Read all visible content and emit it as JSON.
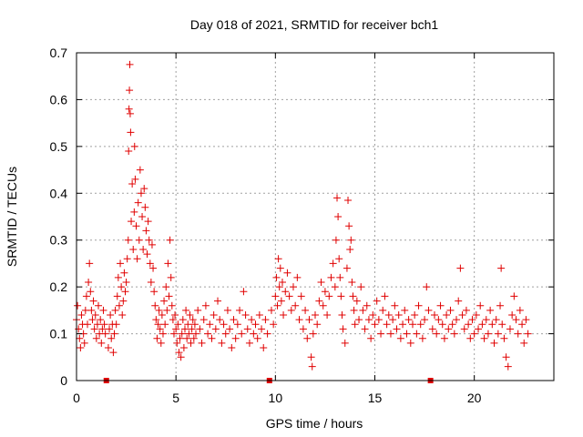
{
  "chart_data": {
    "type": "scatter",
    "title": "Day 018 of 2021, SRMTID for receiver bch1",
    "xlabel": "GPS time / hours",
    "ylabel": "SRMTID / TECUs",
    "xlim": [
      0,
      24
    ],
    "ylim": [
      0,
      0.7
    ],
    "xticks": [
      0,
      5,
      10,
      15,
      20
    ],
    "xtick_labels": [
      "0",
      "5",
      "10",
      "15",
      "20"
    ],
    "yticks": [
      0,
      0.1,
      0.2,
      0.3,
      0.4,
      0.5,
      0.6,
      0.7
    ],
    "ytick_labels": [
      "0",
      "0.1",
      "0.2",
      "0.3",
      "0.4",
      "0.5",
      "0.6",
      "0.7"
    ],
    "grid": true,
    "marker": "+",
    "color": "#e00000",
    "data_gaps_x": [
      1.5,
      9.7,
      17.8
    ],
    "series": [
      {
        "name": "SRMTID",
        "points": [
          [
            0.0,
            0.13
          ],
          [
            0.05,
            0.16
          ],
          [
            0.1,
            0.11
          ],
          [
            0.15,
            0.09
          ],
          [
            0.2,
            0.07
          ],
          [
            0.25,
            0.14
          ],
          [
            0.3,
            0.12
          ],
          [
            0.35,
            0.1
          ],
          [
            0.4,
            0.08
          ],
          [
            0.45,
            0.15
          ],
          [
            0.5,
            0.18
          ],
          [
            0.55,
            0.12
          ],
          [
            0.6,
            0.21
          ],
          [
            0.65,
            0.25
          ],
          [
            0.7,
            0.19
          ],
          [
            0.75,
            0.15
          ],
          [
            0.8,
            0.13
          ],
          [
            0.85,
            0.17
          ],
          [
            0.9,
            0.11
          ],
          [
            0.95,
            0.14
          ],
          [
            1.0,
            0.09
          ],
          [
            1.05,
            0.12
          ],
          [
            1.1,
            0.16
          ],
          [
            1.15,
            0.1
          ],
          [
            1.2,
            0.13
          ],
          [
            1.25,
            0.08
          ],
          [
            1.3,
            0.11
          ],
          [
            1.35,
            0.15
          ],
          [
            1.4,
            0.12
          ],
          [
            1.45,
            0.1
          ],
          [
            1.6,
            0.07
          ],
          [
            1.65,
            0.11
          ],
          [
            1.7,
            0.14
          ],
          [
            1.75,
            0.09
          ],
          [
            1.8,
            0.12
          ],
          [
            1.85,
            0.06
          ],
          [
            1.9,
            0.1
          ],
          [
            1.95,
            0.15
          ],
          [
            2.0,
            0.12
          ],
          [
            2.05,
            0.18
          ],
          [
            2.1,
            0.22
          ],
          [
            2.15,
            0.16
          ],
          [
            2.2,
            0.25
          ],
          [
            2.25,
            0.2
          ],
          [
            2.3,
            0.14
          ],
          [
            2.35,
            0.17
          ],
          [
            2.4,
            0.23
          ],
          [
            2.45,
            0.19
          ],
          [
            2.5,
            0.21
          ],
          [
            2.55,
            0.26
          ],
          [
            2.6,
            0.3
          ],
          [
            2.62,
            0.49
          ],
          [
            2.64,
            0.58
          ],
          [
            2.66,
            0.62
          ],
          [
            2.68,
            0.675
          ],
          [
            2.7,
            0.57
          ],
          [
            2.72,
            0.53
          ],
          [
            2.75,
            0.34
          ],
          [
            2.8,
            0.42
          ],
          [
            2.85,
            0.28
          ],
          [
            2.9,
            0.36
          ],
          [
            2.92,
            0.5
          ],
          [
            2.95,
            0.43
          ],
          [
            3.0,
            0.33
          ],
          [
            3.05,
            0.26
          ],
          [
            3.1,
            0.38
          ],
          [
            3.15,
            0.3
          ],
          [
            3.2,
            0.45
          ],
          [
            3.25,
            0.4
          ],
          [
            3.3,
            0.35
          ],
          [
            3.35,
            0.28
          ],
          [
            3.4,
            0.41
          ],
          [
            3.45,
            0.37
          ],
          [
            3.5,
            0.32
          ],
          [
            3.55,
            0.27
          ],
          [
            3.6,
            0.34
          ],
          [
            3.65,
            0.3
          ],
          [
            3.7,
            0.25
          ],
          [
            3.75,
            0.21
          ],
          [
            3.8,
            0.29
          ],
          [
            3.85,
            0.24
          ],
          [
            3.9,
            0.19
          ],
          [
            3.95,
            0.16
          ],
          [
            4.0,
            0.13
          ],
          [
            4.05,
            0.09
          ],
          [
            4.1,
            0.12
          ],
          [
            4.15,
            0.15
          ],
          [
            4.2,
            0.11
          ],
          [
            4.25,
            0.08
          ],
          [
            4.3,
            0.14
          ],
          [
            4.35,
            0.1
          ],
          [
            4.4,
            0.17
          ],
          [
            4.45,
            0.12
          ],
          [
            4.5,
            0.2
          ],
          [
            4.55,
            0.15
          ],
          [
            4.6,
            0.25
          ],
          [
            4.65,
            0.18
          ],
          [
            4.7,
            0.3
          ],
          [
            4.75,
            0.22
          ],
          [
            4.8,
            0.16
          ],
          [
            4.85,
            0.13
          ],
          [
            4.9,
            0.1
          ],
          [
            4.95,
            0.14
          ],
          [
            5.0,
            0.11
          ],
          [
            5.05,
            0.08
          ],
          [
            5.1,
            0.12
          ],
          [
            5.15,
            0.06
          ],
          [
            5.2,
            0.09
          ],
          [
            5.25,
            0.05
          ],
          [
            5.3,
            0.1
          ],
          [
            5.35,
            0.13
          ],
          [
            5.4,
            0.07
          ],
          [
            5.45,
            0.11
          ],
          [
            5.5,
            0.15
          ],
          [
            5.55,
            0.09
          ],
          [
            5.6,
            0.12
          ],
          [
            5.65,
            0.1
          ],
          [
            5.7,
            0.14
          ],
          [
            5.75,
            0.08
          ],
          [
            5.8,
            0.11
          ],
          [
            5.85,
            0.13
          ],
          [
            5.9,
            0.09
          ],
          [
            5.95,
            0.12
          ],
          [
            6.0,
            0.1
          ],
          [
            6.1,
            0.15
          ],
          [
            6.2,
            0.11
          ],
          [
            6.3,
            0.08
          ],
          [
            6.4,
            0.13
          ],
          [
            6.5,
            0.16
          ],
          [
            6.6,
            0.1
          ],
          [
            6.7,
            0.12
          ],
          [
            6.8,
            0.09
          ],
          [
            6.9,
            0.14
          ],
          [
            7.0,
            0.11
          ],
          [
            7.1,
            0.17
          ],
          [
            7.2,
            0.13
          ],
          [
            7.3,
            0.08
          ],
          [
            7.4,
            0.12
          ],
          [
            7.5,
            0.1
          ],
          [
            7.6,
            0.15
          ],
          [
            7.7,
            0.11
          ],
          [
            7.8,
            0.07
          ],
          [
            7.9,
            0.13
          ],
          [
            8.0,
            0.09
          ],
          [
            8.1,
            0.12
          ],
          [
            8.2,
            0.15
          ],
          [
            8.3,
            0.1
          ],
          [
            8.4,
            0.19
          ],
          [
            8.5,
            0.14
          ],
          [
            8.6,
            0.11
          ],
          [
            8.7,
            0.08
          ],
          [
            8.8,
            0.13
          ],
          [
            8.9,
            0.1
          ],
          [
            9.0,
            0.12
          ],
          [
            9.1,
            0.09
          ],
          [
            9.2,
            0.14
          ],
          [
            9.3,
            0.11
          ],
          [
            9.4,
            0.07
          ],
          [
            9.5,
            0.13
          ],
          [
            9.6,
            0.1
          ],
          [
            9.8,
            0.15
          ],
          [
            9.9,
            0.12
          ],
          [
            10.0,
            0.18
          ],
          [
            10.05,
            0.22
          ],
          [
            10.1,
            0.16
          ],
          [
            10.15,
            0.26
          ],
          [
            10.2,
            0.2
          ],
          [
            10.25,
            0.24
          ],
          [
            10.3,
            0.17
          ],
          [
            10.35,
            0.21
          ],
          [
            10.4,
            0.14
          ],
          [
            10.5,
            0.19
          ],
          [
            10.6,
            0.23
          ],
          [
            10.7,
            0.18
          ],
          [
            10.8,
            0.15
          ],
          [
            10.9,
            0.2
          ],
          [
            11.0,
            0.16
          ],
          [
            11.1,
            0.22
          ],
          [
            11.2,
            0.13
          ],
          [
            11.3,
            0.18
          ],
          [
            11.4,
            0.11
          ],
          [
            11.5,
            0.15
          ],
          [
            11.6,
            0.09
          ],
          [
            11.7,
            0.13
          ],
          [
            11.8,
            0.05
          ],
          [
            11.85,
            0.03
          ],
          [
            11.9,
            0.1
          ],
          [
            12.0,
            0.14
          ],
          [
            12.1,
            0.12
          ],
          [
            12.2,
            0.17
          ],
          [
            12.3,
            0.21
          ],
          [
            12.4,
            0.16
          ],
          [
            12.5,
            0.19
          ],
          [
            12.6,
            0.14
          ],
          [
            12.7,
            0.18
          ],
          [
            12.8,
            0.22
          ],
          [
            12.9,
            0.25
          ],
          [
            13.0,
            0.2
          ],
          [
            13.05,
            0.3
          ],
          [
            13.1,
            0.39
          ],
          [
            13.15,
            0.35
          ],
          [
            13.2,
            0.26
          ],
          [
            13.25,
            0.22
          ],
          [
            13.3,
            0.18
          ],
          [
            13.35,
            0.14
          ],
          [
            13.4,
            0.11
          ],
          [
            13.5,
            0.08
          ],
          [
            13.6,
            0.24
          ],
          [
            13.65,
            0.385
          ],
          [
            13.7,
            0.33
          ],
          [
            13.75,
            0.28
          ],
          [
            13.8,
            0.3
          ],
          [
            13.85,
            0.21
          ],
          [
            13.9,
            0.18
          ],
          [
            13.95,
            0.15
          ],
          [
            14.0,
            0.12
          ],
          [
            14.1,
            0.17
          ],
          [
            14.2,
            0.13
          ],
          [
            14.3,
            0.2
          ],
          [
            14.4,
            0.15
          ],
          [
            14.5,
            0.11
          ],
          [
            14.6,
            0.16
          ],
          [
            14.7,
            0.13
          ],
          [
            14.8,
            0.09
          ],
          [
            14.9,
            0.14
          ],
          [
            15.0,
            0.12
          ],
          [
            15.1,
            0.17
          ],
          [
            15.2,
            0.13
          ],
          [
            15.3,
            0.1
          ],
          [
            15.4,
            0.15
          ],
          [
            15.5,
            0.18
          ],
          [
            15.6,
            0.12
          ],
          [
            15.7,
            0.14
          ],
          [
            15.8,
            0.1
          ],
          [
            15.9,
            0.13
          ],
          [
            16.0,
            0.16
          ],
          [
            16.1,
            0.11
          ],
          [
            16.2,
            0.14
          ],
          [
            16.3,
            0.09
          ],
          [
            16.4,
            0.12
          ],
          [
            16.5,
            0.15
          ],
          [
            16.6,
            0.1
          ],
          [
            16.7,
            0.13
          ],
          [
            16.8,
            0.08
          ],
          [
            16.9,
            0.12
          ],
          [
            17.0,
            0.14
          ],
          [
            17.1,
            0.1
          ],
          [
            17.2,
            0.16
          ],
          [
            17.3,
            0.12
          ],
          [
            17.4,
            0.09
          ],
          [
            17.5,
            0.13
          ],
          [
            17.6,
            0.2
          ],
          [
            17.7,
            0.15
          ],
          [
            17.9,
            0.11
          ],
          [
            18.0,
            0.14
          ],
          [
            18.1,
            0.1
          ],
          [
            18.2,
            0.13
          ],
          [
            18.3,
            0.16
          ],
          [
            18.4,
            0.12
          ],
          [
            18.5,
            0.09
          ],
          [
            18.6,
            0.14
          ],
          [
            18.7,
            0.11
          ],
          [
            18.8,
            0.15
          ],
          [
            18.9,
            0.12
          ],
          [
            19.0,
            0.1
          ],
          [
            19.1,
            0.13
          ],
          [
            19.2,
            0.17
          ],
          [
            19.3,
            0.24
          ],
          [
            19.4,
            0.14
          ],
          [
            19.5,
            0.11
          ],
          [
            19.6,
            0.15
          ],
          [
            19.7,
            0.12
          ],
          [
            19.8,
            0.09
          ],
          [
            19.9,
            0.13
          ],
          [
            20.0,
            0.1
          ],
          [
            20.1,
            0.14
          ],
          [
            20.2,
            0.11
          ],
          [
            20.3,
            0.16
          ],
          [
            20.4,
            0.12
          ],
          [
            20.5,
            0.09
          ],
          [
            20.6,
            0.13
          ],
          [
            20.7,
            0.1
          ],
          [
            20.8,
            0.15
          ],
          [
            20.9,
            0.12
          ],
          [
            21.0,
            0.08
          ],
          [
            21.1,
            0.13
          ],
          [
            21.2,
            0.1
          ],
          [
            21.3,
            0.16
          ],
          [
            21.35,
            0.24
          ],
          [
            21.4,
            0.12
          ],
          [
            21.5,
            0.09
          ],
          [
            21.6,
            0.05
          ],
          [
            21.7,
            0.03
          ],
          [
            21.8,
            0.11
          ],
          [
            21.9,
            0.14
          ],
          [
            22.0,
            0.18
          ],
          [
            22.1,
            0.13
          ],
          [
            22.2,
            0.1
          ],
          [
            22.3,
            0.15
          ],
          [
            22.4,
            0.12
          ],
          [
            22.5,
            0.08
          ],
          [
            22.6,
            0.13
          ],
          [
            22.7,
            0.1
          ]
        ]
      }
    ]
  }
}
